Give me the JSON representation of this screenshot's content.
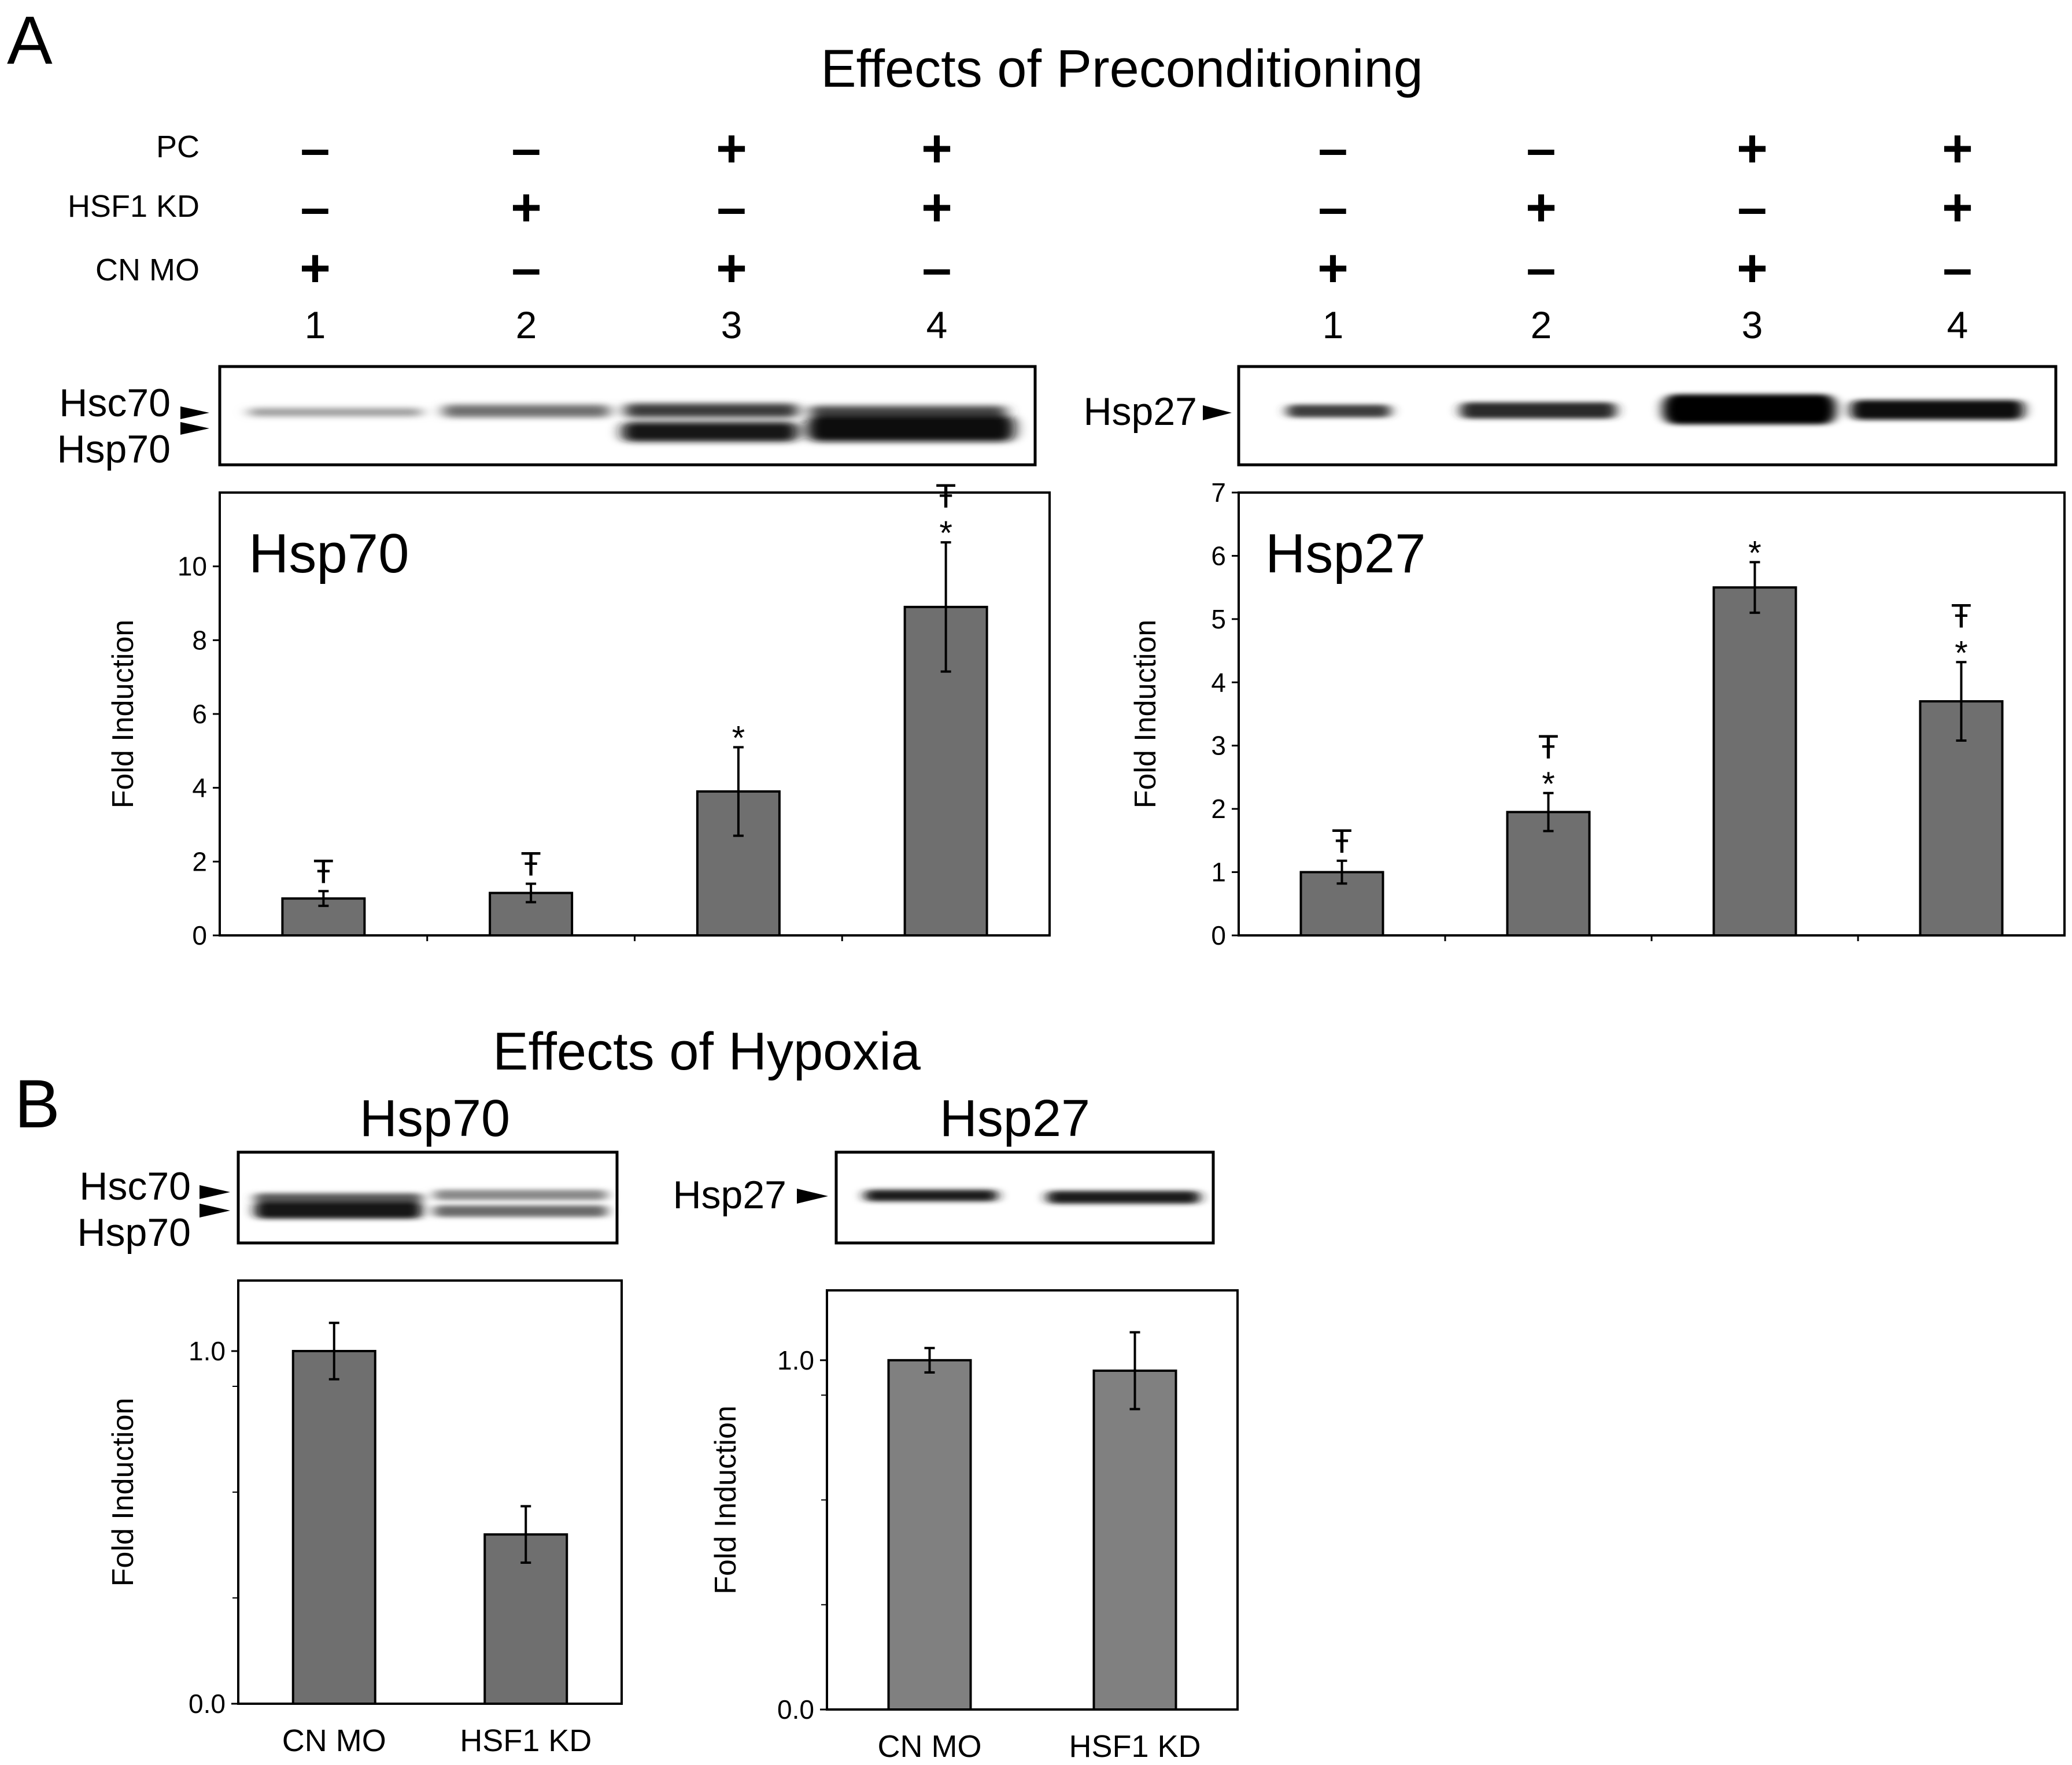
{
  "panel_a": {
    "letter": "A",
    "title": "Effects of Preconditioning",
    "row_labels": [
      "PC",
      "HSF1 KD",
      "CN MO"
    ],
    "conditions": [
      [
        "–",
        "–",
        "+",
        "+"
      ],
      [
        "–",
        "+",
        "–",
        "+"
      ],
      [
        "+",
        "–",
        "+",
        "–"
      ]
    ],
    "lanes": [
      "1",
      "2",
      "3",
      "4"
    ],
    "blot_left": {
      "label_top": "Hsc70",
      "label_bottom": "Hsp70"
    },
    "blot_right": {
      "label": "Hsp27"
    }
  },
  "panel_b": {
    "letter": "B",
    "title": "Effects of Hypoxia",
    "blot_left": {
      "title": "Hsp70",
      "label_top": "Hsc70",
      "label_bottom": "Hsp70"
    },
    "blot_right": {
      "title": "Hsp27",
      "label": "Hsp27"
    }
  },
  "colors": {
    "bar": "#6f6f6f",
    "bar_light": "#808080",
    "axis": "#000000"
  },
  "chart_data": [
    {
      "type": "bar",
      "title": "Hsp70",
      "ylabel": "Fold Induction",
      "categories": [
        "1",
        "2",
        "3",
        "4"
      ],
      "values": [
        1.0,
        1.15,
        3.9,
        8.9
      ],
      "errors": [
        0.2,
        0.25,
        1.2,
        1.75
      ],
      "annotations": [
        [
          "Ŧ"
        ],
        [
          "Ŧ"
        ],
        [
          "*"
        ],
        [
          "Ŧ",
          "*"
        ]
      ],
      "ylim": [
        0,
        12
      ],
      "yticks": [
        "0",
        "2",
        "4",
        "6",
        "8",
        "10"
      ],
      "show_category_labels": false
    },
    {
      "type": "bar",
      "title": "Hsp27",
      "ylabel": "Fold Induction",
      "categories": [
        "1",
        "2",
        "3",
        "4"
      ],
      "values": [
        1.0,
        1.95,
        5.5,
        3.7
      ],
      "errors": [
        0.18,
        0.3,
        0.4,
        0.62
      ],
      "annotations": [
        [
          "Ŧ"
        ],
        [
          "Ŧ",
          "*"
        ],
        [
          "*"
        ],
        [
          "Ŧ",
          "*"
        ]
      ],
      "ylim": [
        0,
        7
      ],
      "yticks": [
        "0",
        "1",
        "2",
        "3",
        "4",
        "5",
        "6",
        "7"
      ],
      "show_category_labels": false
    },
    {
      "type": "bar",
      "title": "",
      "ylabel": "Fold Induction",
      "categories": [
        "CN MO",
        "HSF1 KD"
      ],
      "values": [
        1.0,
        0.48
      ],
      "errors": [
        0.08,
        0.08
      ],
      "annotations": [
        [],
        []
      ],
      "ylim": [
        0,
        1.2
      ],
      "yticks": [
        "0.0",
        "1.0"
      ],
      "show_category_labels": true
    },
    {
      "type": "bar",
      "title": "",
      "ylabel": "Fold Induction",
      "categories": [
        "CN MO",
        "HSF1 KD"
      ],
      "values": [
        1.0,
        0.97
      ],
      "errors": [
        0.035,
        0.11
      ],
      "annotations": [
        [],
        []
      ],
      "ylim": [
        0,
        1.2
      ],
      "yticks": [
        "0.0",
        "1.0"
      ],
      "show_category_labels": true
    }
  ]
}
